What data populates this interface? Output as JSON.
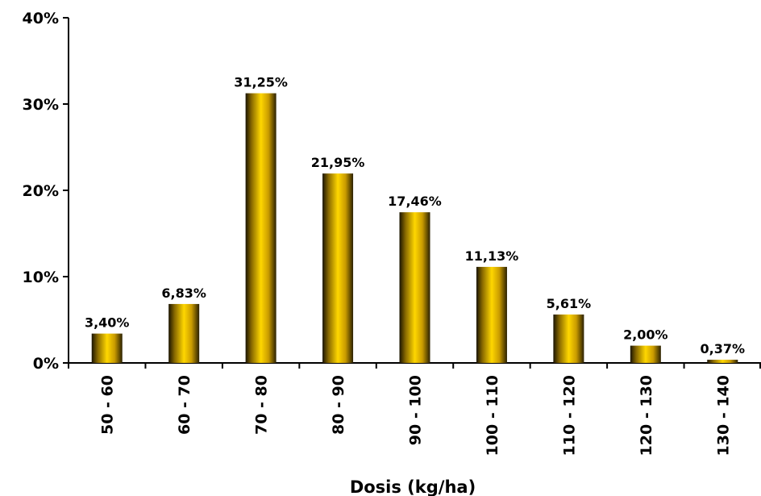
{
  "chart_data": {
    "type": "bar",
    "title": "",
    "xlabel": "Dosis (kg/ha)",
    "ylabel": "",
    "ylim": [
      0,
      40
    ],
    "yticks": [
      0,
      10,
      20,
      30,
      40
    ],
    "ytick_labels": [
      "0%",
      "10%",
      "20%",
      "30%",
      "40%"
    ],
    "categories": [
      "50 - 60",
      "60 - 70",
      "70 - 80",
      "80 - 90",
      "90 - 100",
      "100 - 110",
      "110 - 120",
      "120 - 130",
      "130 - 140"
    ],
    "values": [
      3.4,
      6.83,
      31.25,
      21.95,
      17.46,
      11.13,
      5.61,
      2.0,
      0.37
    ],
    "data_labels": [
      "3,40%",
      "6,83%",
      "31,25%",
      "21,95%",
      "17,46%",
      "11,13%",
      "5,61%",
      "2,00%",
      "0,37%"
    ],
    "grid": false,
    "legend": "none",
    "colors": {
      "bar_light": "#FFD700",
      "bar_mid": "#E0B000",
      "bar_dark": "#1a1400",
      "axis": "#000000"
    }
  }
}
